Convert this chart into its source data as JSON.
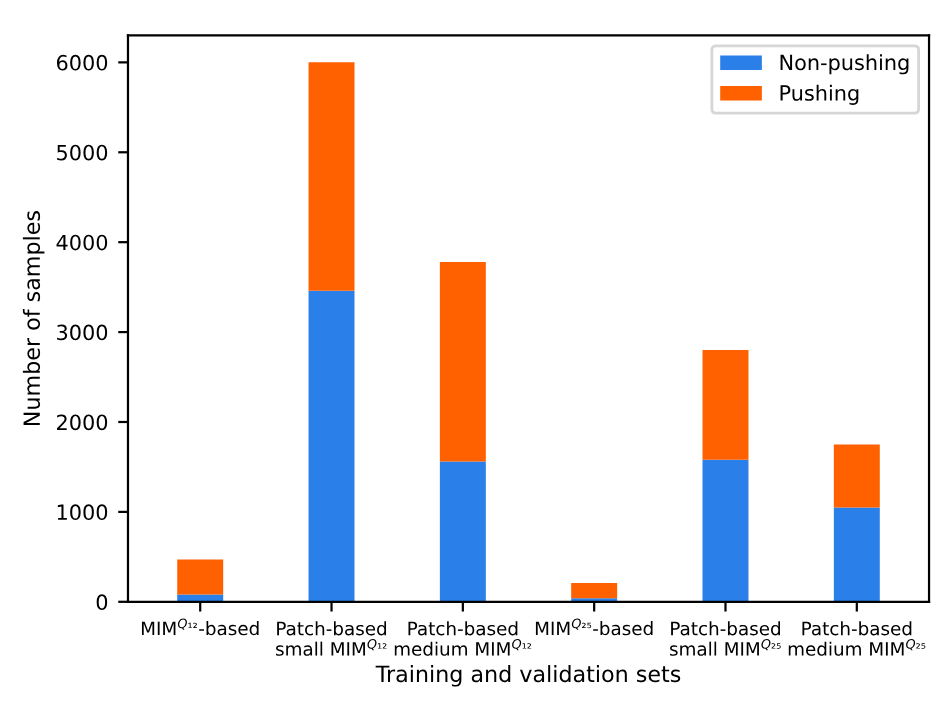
{
  "chart_data": {
    "type": "bar",
    "stacked": true,
    "xlabel": "Training and validation sets",
    "ylabel": "Number of samples",
    "categories": [
      "MIM$^{Q₁₂}$-based",
      "Patch-based\nsmall MIM$^{Q₁₂}$",
      "Patch-based\nmedium MIM$^{Q₁₂}$",
      "MIM$^{Q₂₅}$-based",
      "Patch-based\nsmall MIM$^{Q₂₅}$",
      "Patch-based\nmedium MIM$^{Q₂₅}$"
    ],
    "series": [
      {
        "name": "Non-pushing",
        "color": "#2a80e8",
        "values": [
          80,
          3460,
          1560,
          40,
          1580,
          1050
        ]
      },
      {
        "name": "Pushing",
        "color": "#ff6100",
        "values": [
          390,
          2540,
          2220,
          170,
          1220,
          700
        ]
      }
    ],
    "ylim": [
      0,
      6300
    ],
    "yticks": [
      0,
      1000,
      2000,
      3000,
      4000,
      5000,
      6000
    ],
    "grid": false,
    "legend": "top right"
  }
}
